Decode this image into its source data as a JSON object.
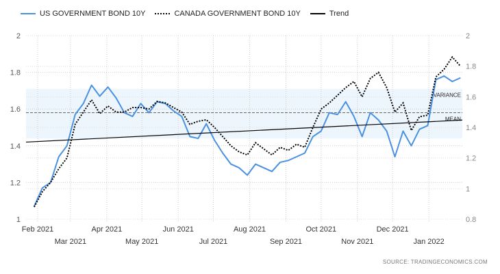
{
  "chart_data": {
    "type": "line",
    "title": "",
    "legend_position": "top-left",
    "grid": true,
    "x_tick_labels": [
      "Feb 2021",
      "Mar 2021",
      "Apr 2021",
      "May 2021",
      "Jun 2021",
      "Jul 2021",
      "Aug 2021",
      "Sep 2021",
      "Oct 2021",
      "Nov 2021",
      "Dec 2021",
      "Jan 2022"
    ],
    "x_tick_dates": [
      "2021-02-01",
      "2021-03-01",
      "2021-04-01",
      "2021-05-01",
      "2021-06-01",
      "2021-07-01",
      "2021-08-01",
      "2021-09-01",
      "2021-10-01",
      "2021-11-01",
      "2021-12-01",
      "2022-01-01"
    ],
    "y_left": {
      "min": 1,
      "max": 2,
      "ticks": [
        "1",
        "1.2",
        "1.4",
        "1.6",
        "1.8",
        "2"
      ]
    },
    "y_right": {
      "min": 0.8,
      "max": 2,
      "ticks": [
        "0.8",
        "1",
        "1.2",
        "1.4",
        "1.6",
        "1.8",
        "2"
      ]
    },
    "x": [
      "2021-01-29",
      "2021-02-05",
      "2021-02-12",
      "2021-02-19",
      "2021-02-26",
      "2021-03-05",
      "2021-03-12",
      "2021-03-19",
      "2021-03-26",
      "2021-04-02",
      "2021-04-09",
      "2021-04-16",
      "2021-04-23",
      "2021-04-30",
      "2021-05-07",
      "2021-05-14",
      "2021-05-21",
      "2021-05-28",
      "2021-06-04",
      "2021-06-11",
      "2021-06-18",
      "2021-06-25",
      "2021-07-02",
      "2021-07-09",
      "2021-07-16",
      "2021-07-23",
      "2021-07-30",
      "2021-08-06",
      "2021-08-13",
      "2021-08-20",
      "2021-08-27",
      "2021-09-03",
      "2021-09-10",
      "2021-09-17",
      "2021-09-24",
      "2021-10-01",
      "2021-10-08",
      "2021-10-15",
      "2021-10-22",
      "2021-10-29",
      "2021-11-05",
      "2021-11-12",
      "2021-11-19",
      "2021-11-26",
      "2021-12-03",
      "2021-12-10",
      "2021-12-17",
      "2021-12-24",
      "2021-12-31",
      "2022-01-07",
      "2022-01-14",
      "2022-01-21",
      "2022-01-28"
    ],
    "series": [
      {
        "name": "US GOVERNMENT BOND 10Y",
        "axis": "left",
        "color": "#4a90e2",
        "style": "solid",
        "values": [
          1.07,
          1.17,
          1.2,
          1.34,
          1.4,
          1.57,
          1.63,
          1.73,
          1.67,
          1.72,
          1.66,
          1.58,
          1.56,
          1.63,
          1.58,
          1.64,
          1.63,
          1.59,
          1.56,
          1.45,
          1.44,
          1.52,
          1.43,
          1.36,
          1.3,
          1.28,
          1.24,
          1.3,
          1.28,
          1.26,
          1.31,
          1.32,
          1.34,
          1.36,
          1.45,
          1.48,
          1.58,
          1.57,
          1.64,
          1.56,
          1.45,
          1.58,
          1.54,
          1.48,
          1.34,
          1.48,
          1.4,
          1.49,
          1.51,
          1.76,
          1.78,
          1.75,
          1.77
        ]
      },
      {
        "name": "CANADA GOVERNMENT BOND 10Y",
        "axis": "right",
        "color": "#000000",
        "style": "dotted",
        "values": [
          0.88,
          0.98,
          1.04,
          1.13,
          1.2,
          1.42,
          1.5,
          1.58,
          1.49,
          1.54,
          1.5,
          1.5,
          1.53,
          1.53,
          1.52,
          1.57,
          1.56,
          1.53,
          1.5,
          1.42,
          1.44,
          1.45,
          1.4,
          1.34,
          1.28,
          1.24,
          1.22,
          1.3,
          1.26,
          1.22,
          1.27,
          1.25,
          1.29,
          1.27,
          1.4,
          1.52,
          1.56,
          1.61,
          1.66,
          1.7,
          1.6,
          1.72,
          1.76,
          1.66,
          1.5,
          1.56,
          1.38,
          1.47,
          1.48,
          1.73,
          1.78,
          1.86,
          1.8
        ]
      },
      {
        "name": "Trend",
        "axis": "left",
        "color": "#000000",
        "style": "solid",
        "values_start_end": [
          1.42,
          1.54
        ]
      }
    ],
    "annotations": [
      {
        "label": "MEAN",
        "value": 1.58,
        "axis": "left"
      },
      {
        "label": "VARIANCE",
        "band": [
          1.44,
          1.71
        ],
        "axis": "left"
      }
    ],
    "source": "SOURCE:  TRADINGECONOMICS.COM"
  }
}
